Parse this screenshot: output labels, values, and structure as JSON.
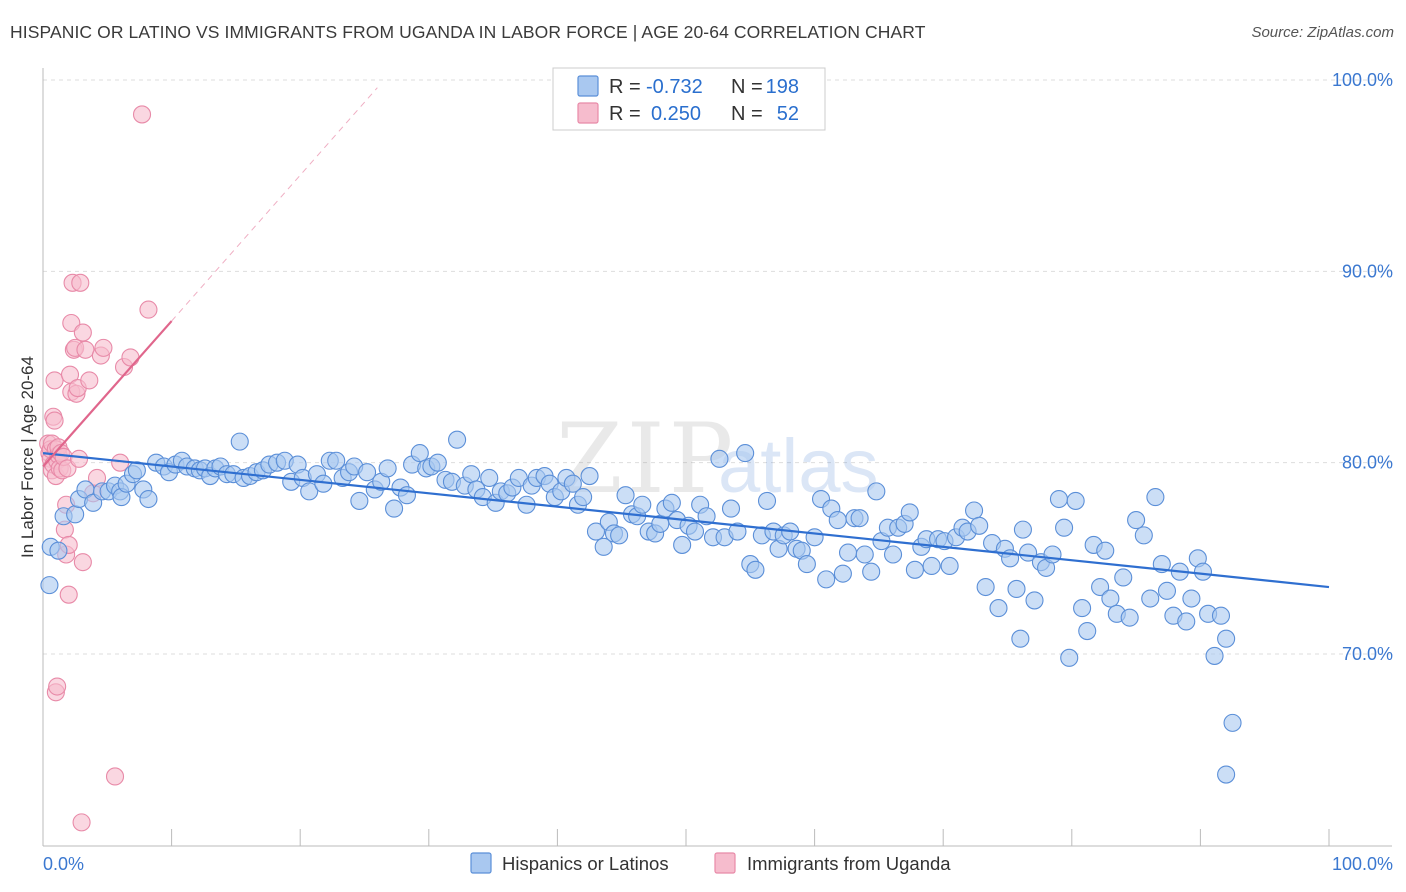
{
  "title": "HISPANIC OR LATINO VS IMMIGRANTS FROM UGANDA IN LABOR FORCE | AGE 20-64 CORRELATION CHART",
  "source": "Source: ZipAtlas.com",
  "watermark": {
    "zip": "ZIP",
    "atlas": "atlas"
  },
  "colors": {
    "blue_fill": "#a9c8f0",
    "blue_stroke": "#5b8fd8",
    "blue_line": "#2f6fd0",
    "pink_fill": "#f6bccd",
    "pink_stroke": "#e88aa8",
    "pink_line": "#e0668c",
    "grid": "#dddddd",
    "tick_text": "#3b78d0"
  },
  "stats": {
    "blue": {
      "r_label": "R =",
      "r_value": "-0.732",
      "n_label": "N =",
      "n_value": "198"
    },
    "pink": {
      "r_label": "R =",
      "r_value": "0.250",
      "n_label": "N =",
      "n_value": "52"
    }
  },
  "chart_data": {
    "type": "scatter",
    "title": "HISPANIC OR LATINO VS IMMIGRANTS FROM UGANDA IN LABOR FORCE | AGE 20-64 CORRELATION CHART",
    "xlabel": "",
    "ylabel": "In Labor Force | Age 20-64",
    "xlim": [
      0,
      100
    ],
    "ylim": [
      61,
      104
    ],
    "x_tick_labels": [
      "0.0%",
      "100.0%"
    ],
    "y_ticks": [
      70,
      80,
      90,
      100
    ],
    "y_tick_labels": [
      "70.0%",
      "80.0%",
      "90.0%",
      "100.0%"
    ],
    "grid": "horizontal dashed",
    "legend": "bottom",
    "series": [
      {
        "name": "Hispanics or Latinos",
        "color": "#a9c8f0",
        "trend": {
          "x": [
            0,
            100
          ],
          "y": [
            80.5,
            73.5
          ]
        },
        "points": [
          [
            0.5,
            73.6
          ],
          [
            0.6,
            75.6
          ],
          [
            1.2,
            75.4
          ],
          [
            1.6,
            77.2
          ],
          [
            2.5,
            77.3
          ],
          [
            2.8,
            78.1
          ],
          [
            3.3,
            78.6
          ],
          [
            3.9,
            77.9
          ],
          [
            4.6,
            78.5
          ],
          [
            5.1,
            78.5
          ],
          [
            5.6,
            78.8
          ],
          [
            6.0,
            78.5
          ],
          [
            6.1,
            78.2
          ],
          [
            6.5,
            78.9
          ],
          [
            7.0,
            79.4
          ],
          [
            7.3,
            79.6
          ],
          [
            7.8,
            78.6
          ],
          [
            8.2,
            78.1
          ],
          [
            8.8,
            80.0
          ],
          [
            9.4,
            79.8
          ],
          [
            9.8,
            79.5
          ],
          [
            10.3,
            79.9
          ],
          [
            10.8,
            80.1
          ],
          [
            11.2,
            79.8
          ],
          [
            11.8,
            79.7
          ],
          [
            12.2,
            79.6
          ],
          [
            12.6,
            79.7
          ],
          [
            13.0,
            79.3
          ],
          [
            13.4,
            79.7
          ],
          [
            13.8,
            79.8
          ],
          [
            14.3,
            79.4
          ],
          [
            14.8,
            79.4
          ],
          [
            15.3,
            81.1
          ],
          [
            15.6,
            79.2
          ],
          [
            16.1,
            79.3
          ],
          [
            16.6,
            79.5
          ],
          [
            17.1,
            79.6
          ],
          [
            17.6,
            79.9
          ],
          [
            18.2,
            80.0
          ],
          [
            18.8,
            80.1
          ],
          [
            19.3,
            79.0
          ],
          [
            19.8,
            79.9
          ],
          [
            20.2,
            79.2
          ],
          [
            20.7,
            78.5
          ],
          [
            21.3,
            79.4
          ],
          [
            21.8,
            78.9
          ],
          [
            22.3,
            80.1
          ],
          [
            22.8,
            80.1
          ],
          [
            23.3,
            79.2
          ],
          [
            23.8,
            79.5
          ],
          [
            24.2,
            79.8
          ],
          [
            24.6,
            78.0
          ],
          [
            25.2,
            79.5
          ],
          [
            25.8,
            78.6
          ],
          [
            26.3,
            79.0
          ],
          [
            26.8,
            79.7
          ],
          [
            27.3,
            77.6
          ],
          [
            27.8,
            78.7
          ],
          [
            28.3,
            78.3
          ],
          [
            28.7,
            79.9
          ],
          [
            29.3,
            80.5
          ],
          [
            29.8,
            79.7
          ],
          [
            30.2,
            79.8
          ],
          [
            30.7,
            80.0
          ],
          [
            31.3,
            79.1
          ],
          [
            31.8,
            79.0
          ],
          [
            32.2,
            81.2
          ],
          [
            32.8,
            78.8
          ],
          [
            33.3,
            79.4
          ],
          [
            33.7,
            78.6
          ],
          [
            34.2,
            78.2
          ],
          [
            34.7,
            79.2
          ],
          [
            35.2,
            77.9
          ],
          [
            35.6,
            78.5
          ],
          [
            36.1,
            78.4
          ],
          [
            36.5,
            78.7
          ],
          [
            37.0,
            79.2
          ],
          [
            37.6,
            77.8
          ],
          [
            38.0,
            78.8
          ],
          [
            38.4,
            79.2
          ],
          [
            39.0,
            79.3
          ],
          [
            39.4,
            78.9
          ],
          [
            39.8,
            78.2
          ],
          [
            40.3,
            78.5
          ],
          [
            40.7,
            79.2
          ],
          [
            41.2,
            78.9
          ],
          [
            41.6,
            77.8
          ],
          [
            42.0,
            78.2
          ],
          [
            42.5,
            79.3
          ],
          [
            43.0,
            76.4
          ],
          [
            43.6,
            75.6
          ],
          [
            44.0,
            76.9
          ],
          [
            44.4,
            76.3
          ],
          [
            44.8,
            76.2
          ],
          [
            45.3,
            78.3
          ],
          [
            45.8,
            77.3
          ],
          [
            46.2,
            77.2
          ],
          [
            46.6,
            77.8
          ],
          [
            47.1,
            76.4
          ],
          [
            47.6,
            76.3
          ],
          [
            48.0,
            76.8
          ],
          [
            48.4,
            77.6
          ],
          [
            48.9,
            77.9
          ],
          [
            49.3,
            77.0
          ],
          [
            49.7,
            75.7
          ],
          [
            50.2,
            76.7
          ],
          [
            50.7,
            76.4
          ],
          [
            51.1,
            77.8
          ],
          [
            51.6,
            77.2
          ],
          [
            52.1,
            76.1
          ],
          [
            52.6,
            80.2
          ],
          [
            53.0,
            76.1
          ],
          [
            53.5,
            77.6
          ],
          [
            54.0,
            76.4
          ],
          [
            54.6,
            80.5
          ],
          [
            55.0,
            74.7
          ],
          [
            55.4,
            74.4
          ],
          [
            55.9,
            76.2
          ],
          [
            56.3,
            78.0
          ],
          [
            56.8,
            76.4
          ],
          [
            57.2,
            75.5
          ],
          [
            57.6,
            76.2
          ],
          [
            58.1,
            76.4
          ],
          [
            58.6,
            75.5
          ],
          [
            59.0,
            75.4
          ],
          [
            59.4,
            74.7
          ],
          [
            60.0,
            76.1
          ],
          [
            60.5,
            78.1
          ],
          [
            60.9,
            73.9
          ],
          [
            61.3,
            77.6
          ],
          [
            61.8,
            77.0
          ],
          [
            62.2,
            74.2
          ],
          [
            62.6,
            75.3
          ],
          [
            63.1,
            77.1
          ],
          [
            63.5,
            77.1
          ],
          [
            63.9,
            75.2
          ],
          [
            64.4,
            74.3
          ],
          [
            64.8,
            78.5
          ],
          [
            65.2,
            75.9
          ],
          [
            65.7,
            76.6
          ],
          [
            66.1,
            75.2
          ],
          [
            66.5,
            76.6
          ],
          [
            67.0,
            76.8
          ],
          [
            67.4,
            77.4
          ],
          [
            67.8,
            74.4
          ],
          [
            68.3,
            75.6
          ],
          [
            68.7,
            76.0
          ],
          [
            69.1,
            74.6
          ],
          [
            69.6,
            76.0
          ],
          [
            70.1,
            75.9
          ],
          [
            70.5,
            74.6
          ],
          [
            71.0,
            76.1
          ],
          [
            71.5,
            76.6
          ],
          [
            71.9,
            76.4
          ],
          [
            72.4,
            77.5
          ],
          [
            72.8,
            76.7
          ],
          [
            73.3,
            73.5
          ],
          [
            73.8,
            75.8
          ],
          [
            74.3,
            72.4
          ],
          [
            74.8,
            75.5
          ],
          [
            75.2,
            75.0
          ],
          [
            75.7,
            73.4
          ],
          [
            76.2,
            76.5
          ],
          [
            76.6,
            75.3
          ],
          [
            77.1,
            72.8
          ],
          [
            77.6,
            74.8
          ],
          [
            78.0,
            74.5
          ],
          [
            78.5,
            75.2
          ],
          [
            79.0,
            78.1
          ],
          [
            79.4,
            76.6
          ],
          [
            79.8,
            69.8
          ],
          [
            80.3,
            78.0
          ],
          [
            80.8,
            72.4
          ],
          [
            81.2,
            71.2
          ],
          [
            81.7,
            75.7
          ],
          [
            82.2,
            73.5
          ],
          [
            82.6,
            75.4
          ],
          [
            83.0,
            72.9
          ],
          [
            83.5,
            72.1
          ],
          [
            84.0,
            74.0
          ],
          [
            84.5,
            71.9
          ],
          [
            85.0,
            77.0
          ],
          [
            85.6,
            76.2
          ],
          [
            86.1,
            72.9
          ],
          [
            86.5,
            78.2
          ],
          [
            87.0,
            74.7
          ],
          [
            87.4,
            73.3
          ],
          [
            87.9,
            72.0
          ],
          [
            88.4,
            74.3
          ],
          [
            88.9,
            71.7
          ],
          [
            89.3,
            72.9
          ],
          [
            89.8,
            75.0
          ],
          [
            90.2,
            74.3
          ],
          [
            90.6,
            72.1
          ],
          [
            91.1,
            69.9
          ],
          [
            91.6,
            72.0
          ],
          [
            92.0,
            70.8
          ],
          [
            92.5,
            66.4
          ],
          [
            92.0,
            63.7
          ],
          [
            76.0,
            70.8
          ]
        ]
      },
      {
        "name": "Immigrants from Uganda",
        "color": "#f6bccd",
        "trend": {
          "x": [
            0,
            10
          ],
          "y": [
            79.8,
            87.4
          ],
          "dashed_extension": {
            "x": [
              10,
              26
            ],
            "y": [
              87.4,
              99.6
            ]
          }
        },
        "points": [
          [
            0.4,
            81.0
          ],
          [
            0.5,
            80.5
          ],
          [
            0.6,
            80.2
          ],
          [
            0.6,
            80.7
          ],
          [
            0.7,
            81.0
          ],
          [
            0.7,
            79.6
          ],
          [
            0.8,
            79.9
          ],
          [
            0.8,
            82.4
          ],
          [
            0.9,
            82.2
          ],
          [
            0.9,
            84.3
          ],
          [
            1.0,
            79.3
          ],
          [
            1.0,
            80.7
          ],
          [
            1.1,
            80.1
          ],
          [
            1.2,
            80.4
          ],
          [
            1.2,
            80.8
          ],
          [
            1.3,
            79.7
          ],
          [
            1.4,
            80.5
          ],
          [
            1.5,
            79.6
          ],
          [
            1.6,
            80.3
          ],
          [
            1.7,
            76.5
          ],
          [
            1.8,
            75.2
          ],
          [
            1.8,
            77.8
          ],
          [
            1.9,
            79.7
          ],
          [
            2.0,
            75.7
          ],
          [
            2.1,
            84.6
          ],
          [
            2.2,
            83.7
          ],
          [
            2.2,
            87.3
          ],
          [
            2.3,
            89.4
          ],
          [
            2.4,
            85.9
          ],
          [
            2.5,
            86.0
          ],
          [
            2.6,
            83.6
          ],
          [
            2.7,
            83.9
          ],
          [
            2.8,
            80.2
          ],
          [
            2.9,
            89.4
          ],
          [
            3.1,
            86.8
          ],
          [
            3.3,
            85.9
          ],
          [
            3.6,
            84.3
          ],
          [
            3.9,
            78.4
          ],
          [
            4.2,
            79.2
          ],
          [
            4.5,
            85.6
          ],
          [
            4.7,
            86.0
          ],
          [
            5.6,
            63.6
          ],
          [
            6.0,
            80.0
          ],
          [
            6.3,
            85.0
          ],
          [
            6.8,
            85.5
          ],
          [
            7.7,
            98.2
          ],
          [
            8.2,
            88.0
          ],
          [
            1.0,
            68.0
          ],
          [
            1.1,
            68.3
          ],
          [
            2.0,
            73.1
          ],
          [
            3.0,
            61.2
          ],
          [
            3.1,
            74.8
          ]
        ]
      }
    ]
  },
  "legend": {
    "blue_label": "Hispanics or Latinos",
    "pink_label": "Immigrants from Uganda"
  }
}
